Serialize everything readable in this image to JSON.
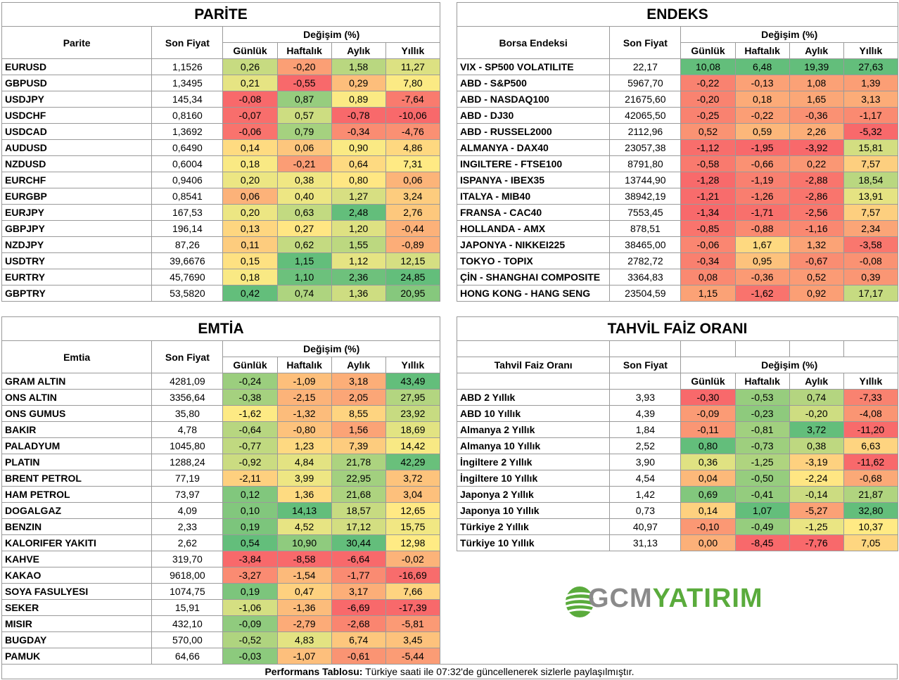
{
  "colors": {
    "green": "#63be7b",
    "yellow": "#ffeb84",
    "red": "#f8696b"
  },
  "parite": {
    "title": "PARİTE",
    "col_name": "Parite",
    "col_price": "Son Fiyat",
    "col_change": "Değişim (%)",
    "periods": [
      "Günlük",
      "Haftalık",
      "Aylık",
      "Yıllık"
    ],
    "rows": [
      {
        "name": "EURUSD",
        "price": "1,1526",
        "d": "0,26",
        "w": "-0,20",
        "m": "1,58",
        "y": "11,27"
      },
      {
        "name": "GBPUSD",
        "price": "1,3495",
        "d": "0,21",
        "w": "-0,55",
        "m": "0,29",
        "y": "7,80"
      },
      {
        "name": "USDJPY",
        "price": "145,34",
        "d": "-0,08",
        "w": "0,87",
        "m": "0,89",
        "y": "-7,64"
      },
      {
        "name": "USDCHF",
        "price": "0,8160",
        "d": "-0,07",
        "w": "0,57",
        "m": "-0,78",
        "y": "-10,06"
      },
      {
        "name": "USDCAD",
        "price": "1,3692",
        "d": "-0,06",
        "w": "0,79",
        "m": "-0,34",
        "y": "-4,76"
      },
      {
        "name": "AUDUSD",
        "price": "0,6490",
        "d": "0,14",
        "w": "0,06",
        "m": "0,90",
        "y": "4,86"
      },
      {
        "name": "NZDUSD",
        "price": "0,6004",
        "d": "0,18",
        "w": "-0,21",
        "m": "0,64",
        "y": "7,31"
      },
      {
        "name": "EURCHF",
        "price": "0,9406",
        "d": "0,20",
        "w": "0,38",
        "m": "0,80",
        "y": "0,06"
      },
      {
        "name": "EURGBP",
        "price": "0,8541",
        "d": "0,06",
        "w": "0,40",
        "m": "1,27",
        "y": "3,24"
      },
      {
        "name": "EURJPY",
        "price": "167,53",
        "d": "0,20",
        "w": "0,63",
        "m": "2,48",
        "y": "2,76"
      },
      {
        "name": "GBPJPY",
        "price": "196,14",
        "d": "0,13",
        "w": "0,27",
        "m": "1,20",
        "y": "-0,44"
      },
      {
        "name": "NZDJPY",
        "price": "87,26",
        "d": "0,11",
        "w": "0,62",
        "m": "1,55",
        "y": "-0,89"
      },
      {
        "name": "USDTRY",
        "price": "39,6676",
        "d": "0,15",
        "w": "1,15",
        "m": "1,12",
        "y": "12,15"
      },
      {
        "name": "EURTRY",
        "price": "45,7690",
        "d": "0,18",
        "w": "1,10",
        "m": "2,36",
        "y": "24,85"
      },
      {
        "name": "GBPTRY",
        "price": "53,5820",
        "d": "0,42",
        "w": "0,74",
        "m": "1,36",
        "y": "20,95"
      }
    ]
  },
  "endeks": {
    "title": "ENDEKS",
    "col_name": "Borsa Endeksi",
    "col_price": "Son Fiyat",
    "col_change": "Değişim (%)",
    "periods": [
      "Günlük",
      "Haftalık",
      "Aylık",
      "Yıllık"
    ],
    "rows": [
      {
        "name": "VIX  - SP500 VOLATILITE",
        "price": "22,17",
        "d": "10,08",
        "w": "6,48",
        "m": "19,39",
        "y": "27,63"
      },
      {
        "name": "ABD - S&P500",
        "price": "5967,70",
        "d": "-0,22",
        "w": "-0,13",
        "m": "1,08",
        "y": "1,39"
      },
      {
        "name": "ABD - NASDAQ100",
        "price": "21675,60",
        "d": "-0,20",
        "w": "0,18",
        "m": "1,65",
        "y": "3,13"
      },
      {
        "name": "ABD - DJ30",
        "price": "42065,50",
        "d": "-0,25",
        "w": "-0,22",
        "m": "-0,36",
        "y": "-1,17"
      },
      {
        "name": "ABD - RUSSEL2000",
        "price": "2112,96",
        "d": "0,52",
        "w": "0,59",
        "m": "2,26",
        "y": "-5,32"
      },
      {
        "name": "ALMANYA - DAX40",
        "price": "23057,38",
        "d": "-1,12",
        "w": "-1,95",
        "m": "-3,92",
        "y": "15,81"
      },
      {
        "name": "INGILTERE - FTSE100",
        "price": "8791,80",
        "d": "-0,58",
        "w": "-0,66",
        "m": "0,22",
        "y": "7,57"
      },
      {
        "name": "ISPANYA - IBEX35",
        "price": "13744,90",
        "d": "-1,28",
        "w": "-1,19",
        "m": "-2,88",
        "y": "18,54"
      },
      {
        "name": "ITALYA - MIB40",
        "price": "38942,19",
        "d": "-1,21",
        "w": "-1,26",
        "m": "-2,86",
        "y": "13,91"
      },
      {
        "name": "FRANSA - CAC40",
        "price": "7553,45",
        "d": "-1,34",
        "w": "-1,71",
        "m": "-2,56",
        "y": "7,57"
      },
      {
        "name": "HOLLANDA - AMX",
        "price": "878,51",
        "d": "-0,85",
        "w": "-0,88",
        "m": "-1,16",
        "y": "2,34"
      },
      {
        "name": "JAPONYA - NIKKEI225",
        "price": "38465,00",
        "d": "-0,06",
        "w": "1,67",
        "m": "1,32",
        "y": "-3,58"
      },
      {
        "name": "TOKYO - TOPIX",
        "price": "2782,72",
        "d": "-0,34",
        "w": "0,95",
        "m": "-0,67",
        "y": "-0,08"
      },
      {
        "name": "ÇİN - SHANGHAI COMPOSITE",
        "price": "3364,83",
        "d": "0,08",
        "w": "-0,36",
        "m": "0,52",
        "y": "0,39"
      },
      {
        "name": "HONG KONG - HANG SENG",
        "price": "23504,59",
        "d": "1,15",
        "w": "-1,62",
        "m": "0,92",
        "y": "17,17"
      }
    ]
  },
  "emtia": {
    "title": "EMTİA",
    "col_name": "Emtia",
    "col_price": "Son Fiyat",
    "col_change": "Değişim (%)",
    "periods": [
      "Günlük",
      "Haftalık",
      "Aylık",
      "Yıllık"
    ],
    "rows": [
      {
        "name": "GRAM ALTIN",
        "price": "4281,09",
        "d": "-0,24",
        "w": "-1,09",
        "m": "3,18",
        "y": "43,49"
      },
      {
        "name": "ONS ALTIN",
        "price": "3356,64",
        "d": "-0,38",
        "w": "-2,15",
        "m": "2,05",
        "y": "27,95"
      },
      {
        "name": "ONS GUMUS",
        "price": "35,80",
        "d": "-1,62",
        "w": "-1,32",
        "m": "8,55",
        "y": "23,92"
      },
      {
        "name": "BAKIR",
        "price": "4,78",
        "d": "-0,64",
        "w": "-0,80",
        "m": "1,56",
        "y": "18,69"
      },
      {
        "name": "PALADYUM",
        "price": "1045,80",
        "d": "-0,77",
        "w": "1,23",
        "m": "7,39",
        "y": "14,42"
      },
      {
        "name": "PLATIN",
        "price": "1288,24",
        "d": "-0,92",
        "w": "4,84",
        "m": "21,78",
        "y": "42,29"
      },
      {
        "name": "BRENT PETROL",
        "price": "77,19",
        "d": "-2,11",
        "w": "3,99",
        "m": "22,95",
        "y": "3,72"
      },
      {
        "name": "HAM PETROL",
        "price": "73,97",
        "d": "0,12",
        "w": "1,36",
        "m": "21,68",
        "y": "3,04"
      },
      {
        "name": "DOGALGAZ",
        "price": "4,09",
        "d": "0,10",
        "w": "14,13",
        "m": "18,57",
        "y": "12,65"
      },
      {
        "name": "BENZIN",
        "price": "2,33",
        "d": "0,19",
        "w": "4,52",
        "m": "17,12",
        "y": "15,75"
      },
      {
        "name": "KALORIFER YAKITI",
        "price": "2,62",
        "d": "0,54",
        "w": "10,90",
        "m": "30,44",
        "y": "12,98"
      },
      {
        "name": "KAHVE",
        "price": "319,70",
        "d": "-3,84",
        "w": "-8,58",
        "m": "-6,64",
        "y": "-0,02"
      },
      {
        "name": "KAKAO",
        "price": "9618,00",
        "d": "-3,27",
        "w": "-1,54",
        "m": "-1,77",
        "y": "-16,69"
      },
      {
        "name": "SOYA FASULYESI",
        "price": "1074,75",
        "d": "0,19",
        "w": "0,47",
        "m": "3,17",
        "y": "7,66"
      },
      {
        "name": "SEKER",
        "price": "15,91",
        "d": "-1,06",
        "w": "-1,36",
        "m": "-6,69",
        "y": "-17,39"
      },
      {
        "name": "MISIR",
        "price": "432,10",
        "d": "-0,09",
        "w": "-2,79",
        "m": "-2,68",
        "y": "-5,81"
      },
      {
        "name": "BUGDAY",
        "price": "570,00",
        "d": "-0,52",
        "w": "4,83",
        "m": "6,74",
        "y": "3,45"
      },
      {
        "name": "PAMUK",
        "price": "64,66",
        "d": "-0,03",
        "w": "-1,07",
        "m": "-0,61",
        "y": "-5,44"
      }
    ]
  },
  "tahvil": {
    "title": "TAHVİL FAİZ ORANI",
    "col_name": "Tahvil Faiz Oranı",
    "col_price": "Son Fiyat",
    "col_change": "Değişim (%)",
    "periods": [
      "Günlük",
      "Haftalık",
      "Aylık",
      "Yıllık"
    ],
    "rows": [
      {
        "name": "ABD 2 Yıllık",
        "price": "3,93",
        "d": "-0,30",
        "w": "-0,53",
        "m": "0,74",
        "y": "-7,33"
      },
      {
        "name": "ABD 10 Yıllık",
        "price": "4,39",
        "d": "-0,09",
        "w": "-0,23",
        "m": "-0,20",
        "y": "-4,08"
      },
      {
        "name": "Almanya 2 Yıllık",
        "price": "1,84",
        "d": "-0,11",
        "w": "-0,81",
        "m": "3,72",
        "y": "-11,20"
      },
      {
        "name": "Almanya 10 Yıllık",
        "price": "2,52",
        "d": "0,80",
        "w": "-0,73",
        "m": "0,38",
        "y": "6,63"
      },
      {
        "name": "İngiltere 2 Yıllık",
        "price": "3,90",
        "d": "0,36",
        "w": "-1,25",
        "m": "-3,19",
        "y": "-11,62"
      },
      {
        "name": "İngiltere 10 Yıllık",
        "price": "4,54",
        "d": "0,04",
        "w": "-0,50",
        "m": "-2,24",
        "y": "-0,68"
      },
      {
        "name": "Japonya 2 Yıllık",
        "price": "1,42",
        "d": "0,69",
        "w": "-0,41",
        "m": "-0,14",
        "y": "21,87"
      },
      {
        "name": "Japonya 10 Yıllık",
        "price": "0,73",
        "d": "0,14",
        "w": "1,07",
        "m": "-5,27",
        "y": "32,80"
      },
      {
        "name": "Türkiye 2 Yıllık",
        "price": "40,97",
        "d": "-0,10",
        "w": "-0,49",
        "m": "-1,25",
        "y": "10,37"
      },
      {
        "name": "Türkiye 10 Yıllık",
        "price": "31,13",
        "d": "0,00",
        "w": "-8,45",
        "m": "-7,76",
        "y": "7,05"
      }
    ]
  },
  "logo": {
    "part1": "GCM",
    "part2": "YATIRIM"
  },
  "footer": {
    "bold": "Performans Tablosu:",
    "text": " Türkiye saati ile 07:32'de güncellenerek sizlerle paylaşılmıştır."
  }
}
